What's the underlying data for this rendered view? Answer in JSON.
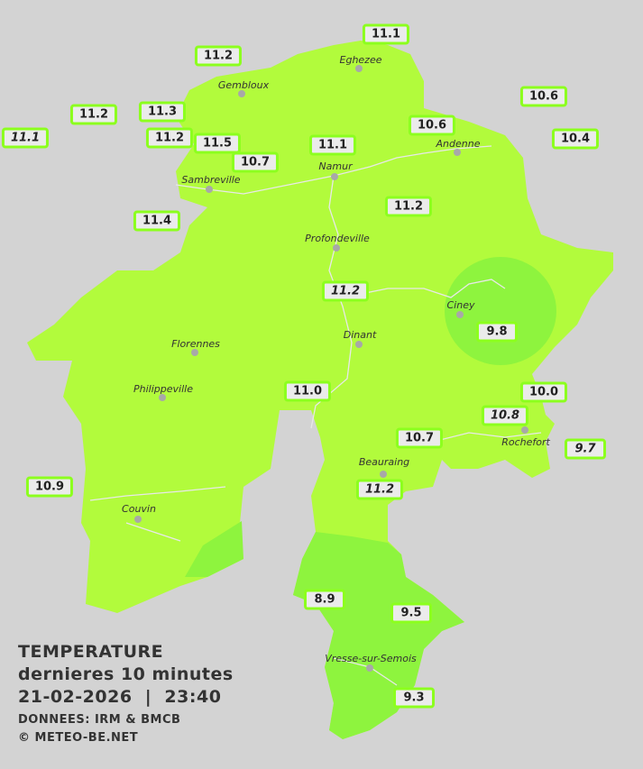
{
  "title": "TEMPERATURE",
  "subtitle": "dernieres 10 minutes",
  "datetime": "21-02-2026  |  23:40",
  "source": "DONNEES: IRM & BMCB",
  "copyright": "© METEO-BE.NET",
  "colors": {
    "background": "#d3d3d3",
    "zone_11": "#b2fb3c",
    "zone_9_10": "#8ef43e",
    "label_border": "#8cff1e"
  },
  "cities": [
    "Eghezee",
    "Gembloux",
    "Andenne",
    "Namur",
    "Sambreville",
    "Profondeville",
    "Ciney",
    "Dinant",
    "Florennes",
    "Philippeville",
    "Rochefort",
    "Beauraing",
    "Couvin",
    "Vresse-sur-Semois"
  ],
  "stations": [
    {
      "value": "11.1"
    },
    {
      "value": "11.2"
    },
    {
      "value": "10.6"
    },
    {
      "value": "11.2"
    },
    {
      "value": "11.3"
    },
    {
      "value": "11.1",
      "italic": true
    },
    {
      "value": "11.2"
    },
    {
      "value": "11.5"
    },
    {
      "value": "10.7"
    },
    {
      "value": "11.1"
    },
    {
      "value": "10.6"
    },
    {
      "value": "10.4"
    },
    {
      "value": "11.4"
    },
    {
      "value": "11.2"
    },
    {
      "value": "11.2",
      "italic": true
    },
    {
      "value": "9.8"
    },
    {
      "value": "11.0"
    },
    {
      "value": "10.0"
    },
    {
      "value": "10.8",
      "italic": true
    },
    {
      "value": "9.7",
      "italic": true
    },
    {
      "value": "10.7"
    },
    {
      "value": "11.2",
      "italic": true
    },
    {
      "value": "10.9"
    },
    {
      "value": "8.9"
    },
    {
      "value": "9.5"
    },
    {
      "value": "9.3"
    }
  ]
}
